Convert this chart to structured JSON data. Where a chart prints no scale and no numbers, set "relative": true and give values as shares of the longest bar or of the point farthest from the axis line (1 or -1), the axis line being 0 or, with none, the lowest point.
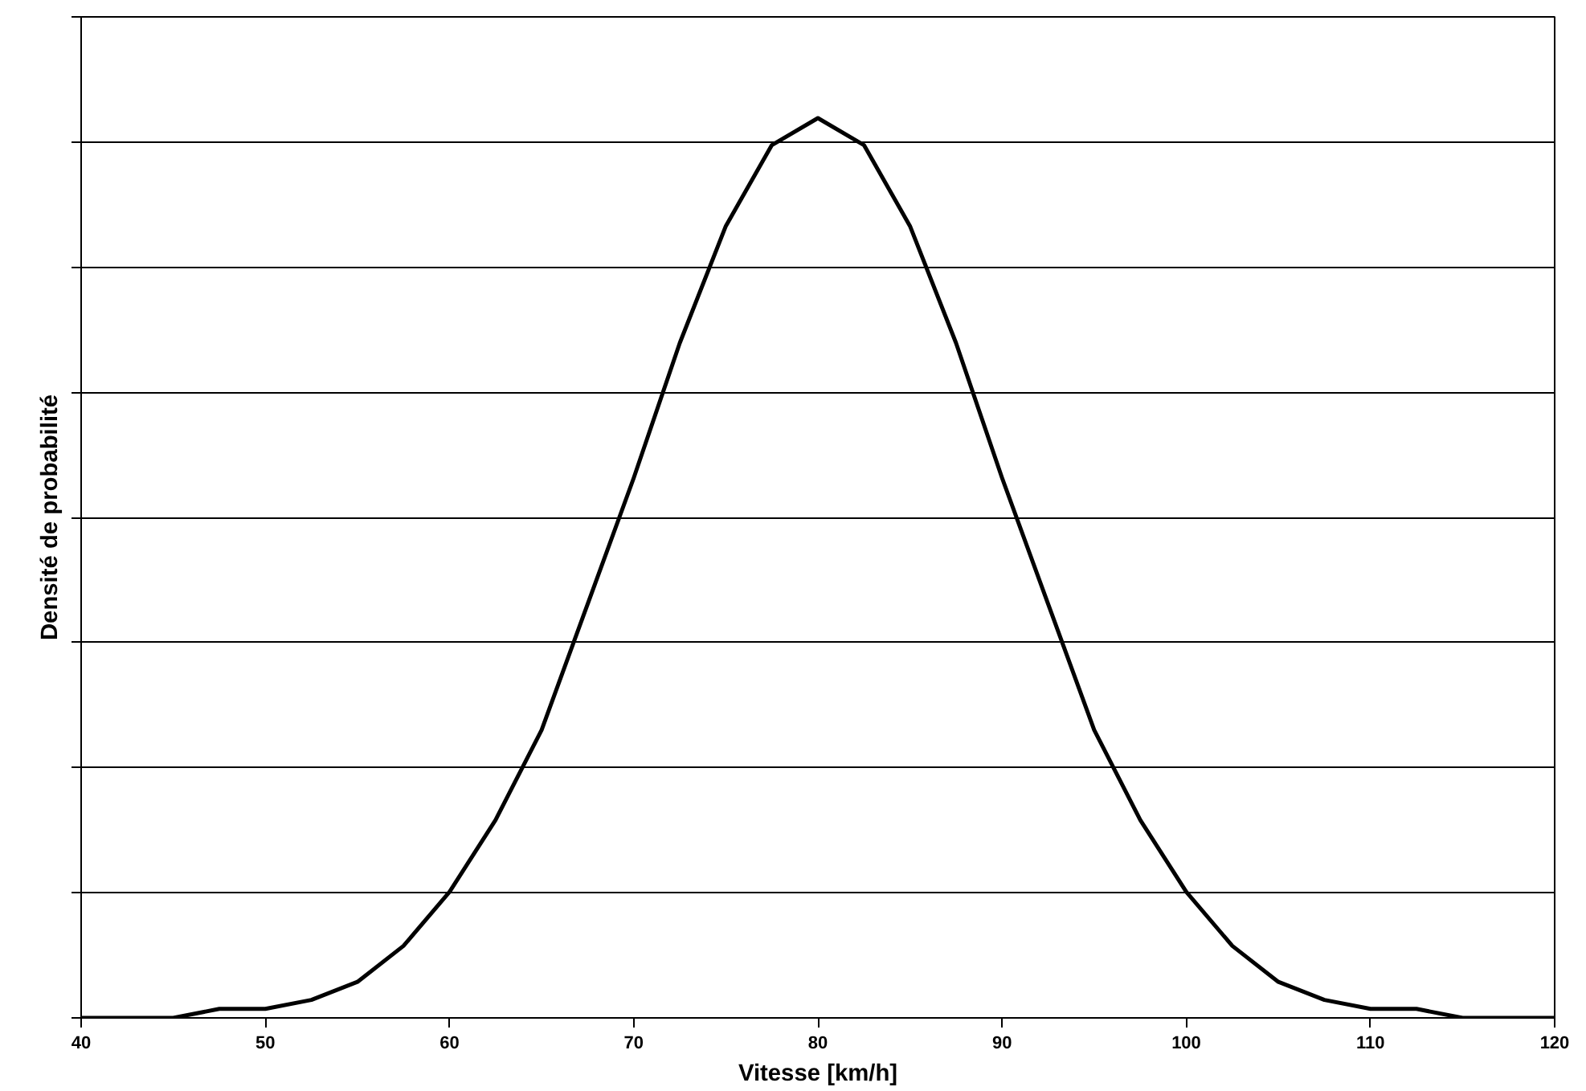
{
  "chart_data": {
    "type": "line",
    "relative": true,
    "xlabel": "Vitesse [km/h]",
    "ylabel": "Densité de probabilité",
    "xlim": [
      40,
      120
    ],
    "xticks": [
      40,
      50,
      60,
      70,
      80,
      90,
      100,
      110,
      120
    ],
    "grid": "y",
    "tick_labels": "x",
    "marker": "none",
    "line_style": "solid",
    "x": [
      40,
      42.5,
      45,
      47.5,
      50,
      52.5,
      55,
      57.5,
      60,
      62.5,
      65,
      67.5,
      70,
      72.5,
      75,
      77.5,
      80,
      82.5,
      85,
      87.5,
      90,
      92.5,
      95,
      97.5,
      100,
      102.5,
      105,
      107.5,
      110,
      112.5,
      115,
      117.5,
      120
    ],
    "series": [
      {
        "color": "#000000",
        "values": [
          0,
          0,
          0,
          0.01,
          0.01,
          0.02,
          0.04,
          0.08,
          0.14,
          0.22,
          0.32,
          0.46,
          0.6,
          0.75,
          0.88,
          0.97,
          1,
          0.97,
          0.88,
          0.75,
          0.6,
          0.46,
          0.32,
          0.22,
          0.14,
          0.08,
          0.04,
          0.02,
          0.01,
          0.01,
          0,
          0,
          0
        ]
      }
    ]
  }
}
